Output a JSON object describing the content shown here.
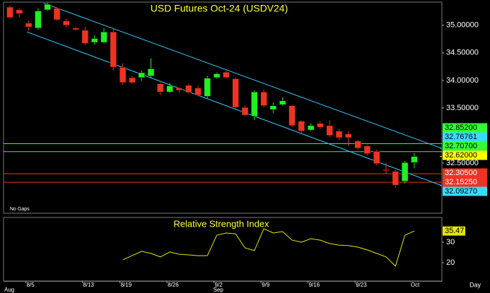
{
  "chart_data": {
    "type": "candlestick",
    "title": "USD Futures Oct-24  (USDV24)",
    "annotation": "No Gaps",
    "x_unit": "Day",
    "categories": [
      null,
      null,
      "8/5",
      null,
      null,
      null,
      null,
      null,
      "8/13",
      null,
      null,
      null,
      "8/19",
      null,
      null,
      null,
      null,
      "8/26",
      null,
      null,
      null,
      null,
      "9/2",
      null,
      null,
      null,
      null,
      "9/9",
      null,
      null,
      null,
      null,
      "9/16",
      null,
      null,
      null,
      null,
      "9/23",
      null,
      null,
      null,
      null,
      null,
      null
    ],
    "months": [
      "Aug",
      null,
      null,
      null,
      null,
      null,
      null,
      null,
      null,
      null,
      null,
      null,
      null,
      null,
      null,
      null,
      null,
      null,
      null,
      null,
      null,
      null,
      "Sep",
      null,
      null,
      null,
      null,
      null,
      null,
      null,
      null,
      null,
      null,
      null,
      null,
      null,
      null,
      null,
      null,
      null,
      null,
      null,
      null,
      "Oct"
    ],
    "open": [
      35.33,
      35.28,
      35.04,
      34.95,
      35.28,
      35.31,
      35.08,
      34.95,
      34.91,
      34.69,
      34.69,
      34.88,
      34.24,
      34.05,
      34.05,
      34.08,
      33.94,
      33.79,
      33.86,
      33.91,
      33.86,
      33.71,
      34.05,
      34.15,
      34.03,
      33.51,
      33.35,
      33.79,
      33.47,
      33.56,
      33.54,
      33.26,
      33.1,
      33.22,
      33.18,
      33.08,
      33.03,
      32.9,
      32.81,
      32.71,
      32.38,
      32.35,
      32.17,
      32.51
    ],
    "high": [
      35.36,
      35.31,
      35.08,
      35.31,
      35.41,
      35.33,
      35.12,
      34.97,
      34.97,
      34.82,
      34.95,
      34.95,
      34.31,
      34.08,
      34.18,
      34.4,
      33.96,
      33.95,
      33.88,
      33.94,
      33.9,
      34.08,
      34.14,
      34.18,
      34.05,
      33.54,
      33.82,
      33.83,
      33.6,
      33.69,
      33.56,
      33.28,
      33.22,
      33.26,
      33.28,
      33.12,
      33.08,
      32.92,
      32.83,
      32.74,
      32.51,
      32.38,
      32.54,
      32.68
    ],
    "low": [
      35.12,
      35.15,
      34.9,
      34.92,
      35.26,
      35.08,
      34.97,
      34.9,
      34.64,
      34.65,
      34.67,
      34.18,
      33.92,
      33.94,
      33.99,
      34.05,
      33.74,
      33.77,
      33.78,
      33.76,
      33.71,
      33.68,
      34.03,
      34.03,
      33.49,
      33.35,
      33.28,
      33.51,
      33.41,
      33.54,
      33.15,
      33.05,
      33.08,
      33.12,
      32.97,
      32.92,
      32.81,
      32.74,
      32.64,
      32.46,
      32.31,
      32.06,
      32.13,
      32.41
    ],
    "close": [
      35.14,
      35.21,
      34.97,
      35.26,
      35.38,
      35.1,
      35.0,
      34.92,
      34.67,
      34.76,
      34.88,
      34.24,
      33.96,
      33.96,
      34.14,
      34.21,
      33.79,
      33.9,
      33.82,
      33.78,
      33.73,
      34.04,
      34.12,
      34.05,
      33.51,
      33.37,
      33.79,
      33.54,
      33.54,
      33.63,
      33.18,
      33.08,
      33.18,
      33.15,
      33.0,
      32.96,
      32.96,
      32.77,
      32.67,
      32.49,
      32.36,
      32.1,
      32.51,
      32.62
    ],
    "up_color": "#22ee22",
    "down_color": "#ee3322",
    "ylim": [
      31.59,
      35.42
    ],
    "yticks": [
      {
        "value": 35,
        "label": "35.00000"
      },
      {
        "value": 34.5,
        "label": "34.50000"
      },
      {
        "value": 34,
        "label": "34.00000"
      },
      {
        "value": 33.5,
        "label": "33.50000"
      },
      {
        "value": 32.5,
        "label": "32.50000"
      }
    ],
    "levels": [
      {
        "value": 32.852,
        "label": "32.85200",
        "color": "#33ff33",
        "text_color": "#000000",
        "kind": "line"
      },
      {
        "value": 32.76761,
        "label": "32.76761",
        "color": "#33ddff",
        "text_color": "#000000",
        "kind": "channel"
      },
      {
        "value": 32.707,
        "label": "32.70700",
        "color": "#33ff33",
        "text_color": "#000000",
        "kind": "line"
      },
      {
        "value": 32.62,
        "label": "32.62000",
        "color": "#ffff00",
        "text_color": "#000000",
        "kind": "last"
      },
      {
        "value": 32.305,
        "label": "32.30500",
        "color": "#ee3322",
        "text_color": "#ffffff",
        "kind": "line"
      },
      {
        "value": 32.1525,
        "label": "32.15250",
        "color": "#ee3322",
        "text_color": "#ffffff",
        "kind": "line"
      },
      {
        "value": 32.0927,
        "label": "32.09270",
        "color": "#33ddff",
        "text_color": "#000000",
        "kind": "channel"
      }
    ],
    "channel": {
      "color": "#33ccff",
      "end_x": 45.9,
      "starts": [
        {
          "x": 3.6,
          "value": 35.4
        },
        {
          "x": 1.8,
          "value": 34.88
        }
      ]
    },
    "rsi": {
      "title": "Relative Strength Index",
      "color": "#e6e600",
      "values": [
        null,
        null,
        null,
        null,
        null,
        null,
        null,
        null,
        null,
        null,
        null,
        null,
        21.4,
        23.4,
        25.5,
        24.5,
        22.8,
        25.2,
        24.1,
        23.8,
        23.4,
        23.4,
        33.4,
        34.5,
        34.1,
        27.2,
        25.9,
        36.6,
        34.5,
        35.2,
        31.0,
        30.0,
        31.7,
        31.0,
        29.3,
        28.6,
        28.3,
        27.6,
        26.2,
        24.5,
        22.8,
        18.3,
        33.4,
        35.47
      ],
      "ylim": [
        11,
        42.1
      ],
      "yticks": [
        30,
        20
      ]
    }
  }
}
